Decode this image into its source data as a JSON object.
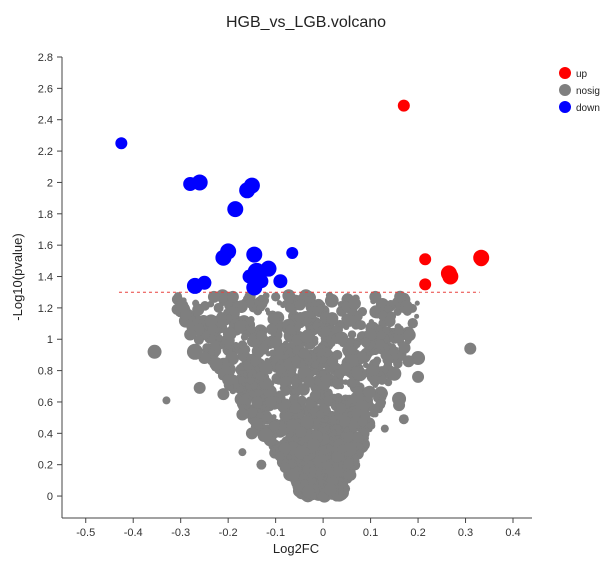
{
  "chart_data": {
    "type": "scatter",
    "title": "HGB_vs_LGB.volcano",
    "xlabel": "Log2FC",
    "ylabel": "-Log10(pvalue)",
    "xlim": [
      -0.55,
      0.44
    ],
    "ylim": [
      -0.14,
      2.8
    ],
    "x_ticks": [
      -0.5,
      -0.4,
      -0.3,
      -0.2,
      -0.1,
      0,
      0.1,
      0.2,
      0.3,
      0.4
    ],
    "x_tick_labels": [
      "-0.5",
      "-0.4",
      "-0.3",
      "-0.2",
      "-0.1",
      "0",
      "0.1",
      "0.2",
      "0.3",
      "0.4"
    ],
    "y_ticks": [
      0,
      0.2,
      0.4,
      0.6,
      0.8,
      1,
      1.2,
      1.4,
      1.6,
      1.8,
      2,
      2.2,
      2.4,
      2.6,
      2.8
    ],
    "y_tick_labels": [
      "0",
      "0.2",
      "0.4",
      "0.6",
      "0.8",
      "1",
      "1.2",
      "1.4",
      "1.6",
      "1.8",
      "2",
      "2.2",
      "2.4",
      "2.6",
      "2.8"
    ],
    "threshold_y": 1.3,
    "threshold_x_range": [
      -0.43,
      0.33
    ],
    "legend_position": "top-right",
    "grid": false,
    "series": [
      {
        "name": "up",
        "color": "#ff0000",
        "points": [
          {
            "x": 0.17,
            "y": 2.49,
            "size": 6
          },
          {
            "x": 0.215,
            "y": 1.51,
            "size": 6
          },
          {
            "x": 0.215,
            "y": 1.35,
            "size": 6
          },
          {
            "x": 0.265,
            "y": 1.42,
            "size": 8
          },
          {
            "x": 0.268,
            "y": 1.4,
            "size": 8
          },
          {
            "x": 0.333,
            "y": 1.52,
            "size": 8
          },
          {
            "x": 0.333,
            "y": 1.51,
            "size": 7
          }
        ]
      },
      {
        "name": "nosig",
        "color": "#7f7f7f",
        "points": []
      },
      {
        "name": "down",
        "color": "#0000ff",
        "points": [
          {
            "x": -0.425,
            "y": 2.25,
            "size": 6
          },
          {
            "x": -0.28,
            "y": 1.99,
            "size": 7
          },
          {
            "x": -0.26,
            "y": 2.0,
            "size": 8
          },
          {
            "x": -0.16,
            "y": 1.95,
            "size": 8
          },
          {
            "x": -0.15,
            "y": 1.98,
            "size": 8
          },
          {
            "x": -0.185,
            "y": 1.83,
            "size": 8
          },
          {
            "x": -0.21,
            "y": 1.52,
            "size": 8
          },
          {
            "x": -0.2,
            "y": 1.56,
            "size": 8
          },
          {
            "x": -0.145,
            "y": 1.54,
            "size": 8
          },
          {
            "x": -0.065,
            "y": 1.55,
            "size": 6
          },
          {
            "x": -0.27,
            "y": 1.34,
            "size": 8
          },
          {
            "x": -0.25,
            "y": 1.36,
            "size": 7
          },
          {
            "x": -0.155,
            "y": 1.4,
            "size": 7
          },
          {
            "x": -0.14,
            "y": 1.43,
            "size": 9
          },
          {
            "x": -0.115,
            "y": 1.45,
            "size": 8
          },
          {
            "x": -0.13,
            "y": 1.37,
            "size": 7
          },
          {
            "x": -0.145,
            "y": 1.33,
            "size": 8
          },
          {
            "x": -0.09,
            "y": 1.37,
            "size": 7
          }
        ]
      }
    ]
  }
}
